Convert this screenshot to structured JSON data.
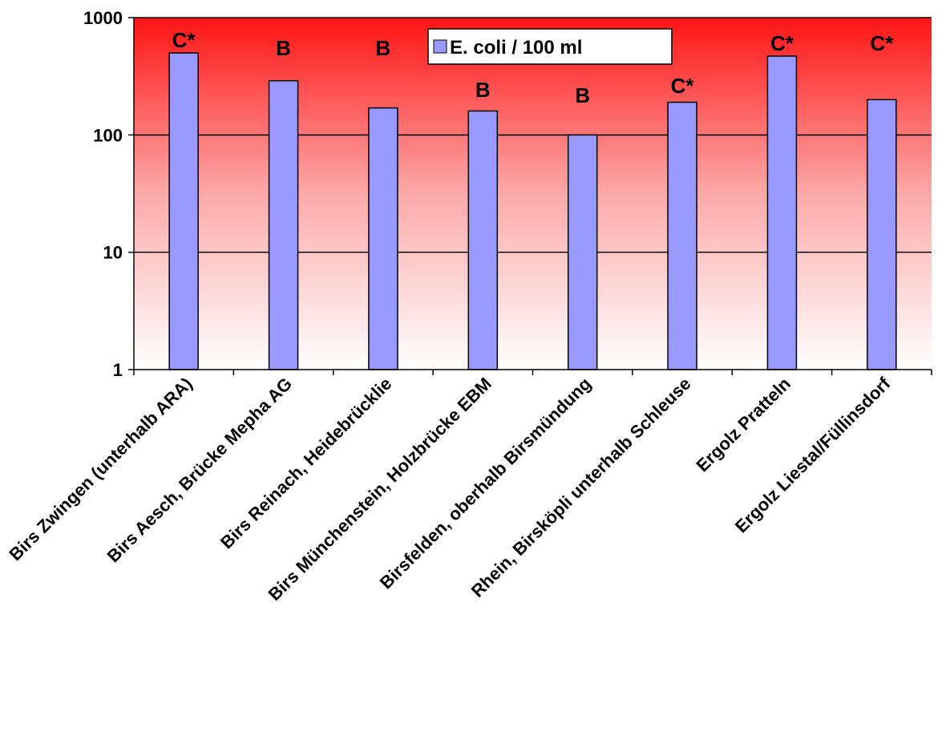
{
  "chart_data": {
    "type": "bar",
    "yscale": "log",
    "ylim": [
      1,
      1000
    ],
    "yticks": [
      "1",
      "10",
      "100",
      "1000"
    ],
    "grid": true,
    "legend": {
      "position": "top-center",
      "entries": [
        "E. coli / 100 ml"
      ]
    },
    "categories": [
      "Birs Zwingen (unterhalb ARA)",
      "Birs Aesch, Brücke Mepha AG",
      "Birs Reinach, Heidebrücklie",
      "Birs Münchenstein, Holzbrücke EBM",
      "Birsfelden, oberhalb Birsmündung",
      "Rhein, Birsköpli unterhalb Schleuse",
      "Ergolz Pratteln",
      "Ergolz Liestal/Füllinsdorf"
    ],
    "series": [
      {
        "name": "E. coli / 100 ml",
        "values": [
          500,
          290,
          170,
          160,
          100,
          190,
          470,
          200
        ]
      }
    ],
    "data_labels": [
      "C*",
      "B",
      "B",
      "B",
      "B",
      "C*",
      "C*",
      "C*"
    ],
    "colors": {
      "bar_fill": "#9999ff",
      "bar_stroke": "#000000",
      "bg_top": "#ff1414",
      "bg_bottom": "#ffffff",
      "grid": "#000000"
    }
  }
}
